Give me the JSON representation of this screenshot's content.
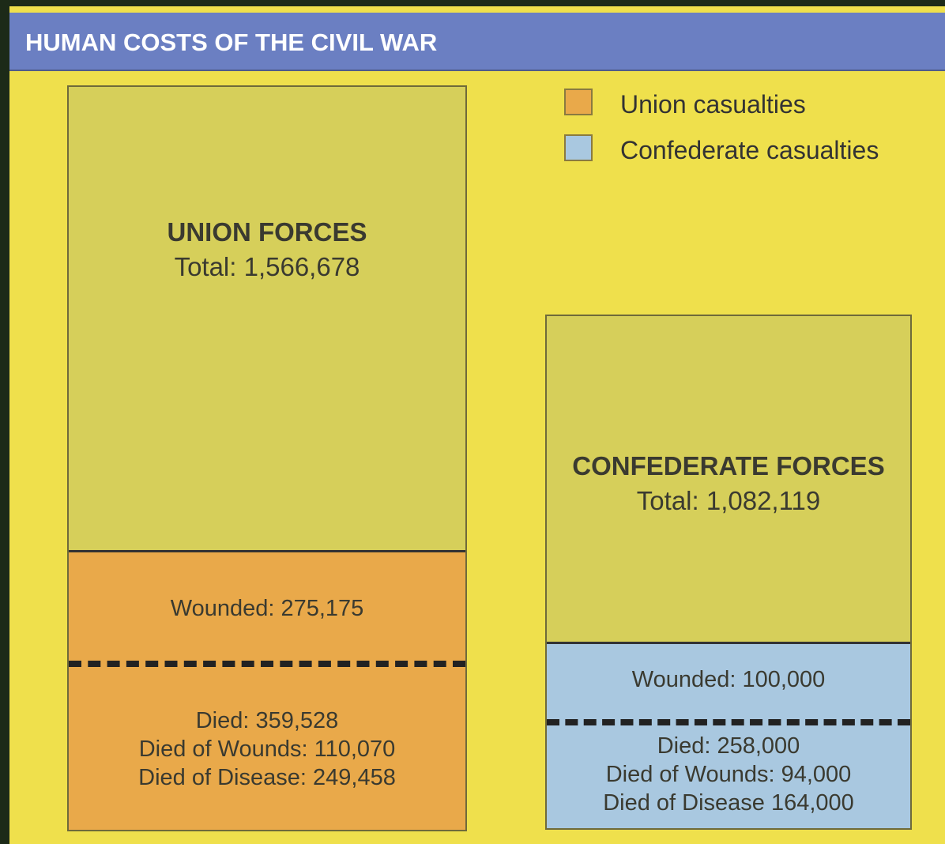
{
  "header": {
    "title": "HUMAN COSTS OF THE CIVIL WAR"
  },
  "legend": [
    {
      "label": "Union casualties"
    },
    {
      "label": "Confederate casualties"
    }
  ],
  "union": {
    "title": "UNION FORCES",
    "total": "Total: 1,566,678",
    "wounded": "Wounded: 275,175",
    "died": [
      "Died: 359,528",
      "Died of Wounds: 110,070",
      "Died of Disease: 249,458"
    ]
  },
  "confederate": {
    "title": "CONFEDERATE FORCES",
    "total": "Total: 1,082,119",
    "wounded": "Wounded: 100,000",
    "died": [
      "Died: 258,000",
      "Died of Wounds: 94,000",
      "Died of Disease 164,000"
    ]
  }
}
